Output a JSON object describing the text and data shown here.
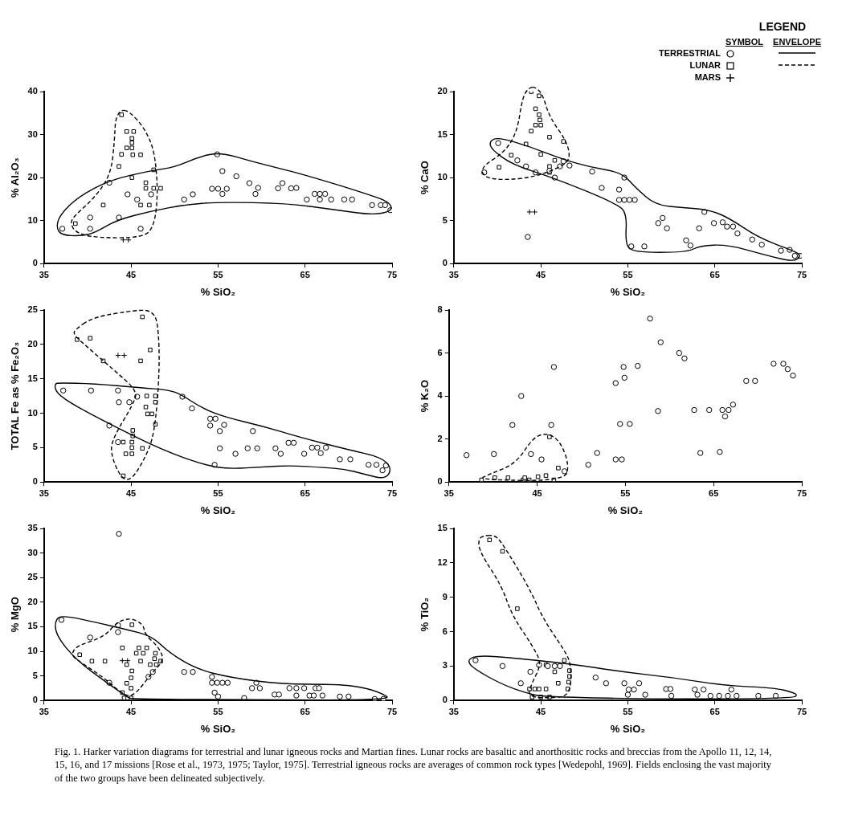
{
  "chart_data": [
    {
      "type": "scatter",
      "xlabel": "% SiO₂",
      "ylabel": "% Al₂O₃",
      "xlim": [
        35,
        75
      ],
      "xticks": [
        35,
        45,
        55,
        65,
        75
      ],
      "ylim": [
        0,
        40
      ],
      "yticks": [
        0,
        10,
        20,
        30,
        40
      ],
      "grid": false,
      "legend": false,
      "series": [
        {
          "color": "#000000",
          "marker": "circle",
          "x": [
            37.1,
            40.3,
            40.3,
            42.5,
            43.6,
            44.6,
            45.7,
            46.1,
            47.3,
            51.1,
            52.1,
            54.9,
            54.3,
            55.0,
            55.5,
            55.5,
            56.0,
            57.1,
            58.6,
            59.3,
            59.6,
            61.9,
            62.4,
            63.4,
            64.0,
            65.2,
            66.1,
            66.7,
            67.3,
            66.7,
            68.0,
            69.5,
            70.4,
            72.7,
            73.7,
            74.2,
            74.8
          ],
          "values": [
            8.1,
            10.7,
            8.1,
            18.8,
            10.7,
            16.1,
            14.9,
            8.1,
            16.1,
            14.9,
            16.1,
            25.4,
            17.4,
            17.4,
            21.5,
            16.2,
            17.4,
            20.3,
            18.7,
            16.2,
            17.6,
            17.5,
            18.7,
            17.5,
            17.6,
            14.9,
            16.2,
            16.2,
            16.2,
            14.9,
            14.9,
            14.9,
            14.9,
            13.6,
            13.6,
            13.6,
            12.4
          ]
        },
        {
          "color": "#000000",
          "marker": "square",
          "x": [
            43.9,
            44.5,
            45.3,
            45.1,
            45.1,
            44.5,
            45.1,
            43.9,
            45.2,
            46.1,
            43.6,
            47.6,
            45.1,
            46.7,
            46.7,
            47.6,
            48.4,
            41.8,
            46.1,
            47.1,
            38.6
          ],
          "values": [
            34.6,
            30.7,
            30.7,
            29.1,
            28.1,
            26.9,
            26.9,
            25.4,
            25.3,
            25.3,
            22.6,
            21.8,
            20.0,
            18.8,
            17.5,
            17.5,
            17.5,
            13.6,
            13.6,
            13.6,
            9.3
          ]
        },
        {
          "color": "#000000",
          "marker": "cross",
          "x": [
            44.1,
            44.7
          ],
          "values": [
            5.5,
            5.5
          ]
        }
      ]
    },
    {
      "type": "scatter",
      "xlabel": "% SiO₂",
      "ylabel": "% CaO",
      "xlim": [
        35,
        75
      ],
      "xticks": [
        35,
        45,
        55,
        65,
        75
      ],
      "ylim": [
        0,
        20
      ],
      "yticks": [
        0,
        5,
        10,
        15,
        20
      ],
      "grid": false,
      "legend": "top right",
      "legend_title": "LEGEND",
      "annotations": [
        "SYMBOL",
        "ENVELOPE"
      ],
      "series": [
        {
          "name": "TERRESTRIAL",
          "color": "#000000",
          "marker": "circle",
          "x": [
            40.1,
            38.5,
            42.3,
            43.3,
            44.4,
            46.6,
            46.0,
            47.2,
            47.6,
            48.3,
            50.9,
            54.6,
            52.0,
            54.0,
            54.0,
            54.6,
            55.2,
            55.8,
            59.0,
            58.5,
            59.5,
            63.2,
            63.8,
            64.9,
            65.9,
            66.4,
            67.1,
            67.6,
            69.3,
            70.4,
            61.7,
            62.2,
            55.4,
            56.9,
            72.6,
            73.6,
            74.2,
            74.8,
            43.5
          ],
          "values": [
            14.0,
            10.6,
            12.0,
            11.3,
            10.6,
            10.0,
            10.8,
            11.3,
            11.9,
            11.4,
            10.7,
            10.0,
            8.8,
            8.6,
            7.4,
            7.4,
            7.4,
            7.4,
            5.3,
            4.7,
            4.1,
            4.1,
            6.0,
            4.7,
            4.8,
            4.3,
            4.3,
            3.5,
            2.8,
            2.2,
            2.7,
            2.1,
            2.0,
            2.0,
            1.5,
            1.6,
            0.9,
            0.9,
            3.1
          ]
        },
        {
          "name": "LUNAR",
          "color": "#000000",
          "marker": "square",
          "x": [
            43.9,
            44.8,
            44.4,
            44.8,
            44.9,
            44.4,
            45.0,
            43.9,
            46.0,
            47.6,
            43.3,
            41.6,
            40.2,
            45.0,
            46.0,
            46.6,
            46.0
          ],
          "values": [
            20.0,
            19.5,
            18.0,
            17.3,
            16.7,
            16.1,
            16.1,
            15.4,
            14.7,
            14.2,
            13.9,
            12.6,
            11.2,
            12.7,
            11.3,
            12.0,
            10.6
          ]
        },
        {
          "name": "MARS",
          "color": "#000000",
          "marker": "cross",
          "x": [
            43.7,
            44.3
          ],
          "values": [
            6.0,
            6.0
          ]
        }
      ]
    },
    {
      "type": "scatter",
      "xlabel": "% SiO₂",
      "ylabel": "TOTAL Fe as % Fe₂O₃",
      "xlim": [
        35,
        75
      ],
      "xticks": [
        35,
        45,
        55,
        65,
        75
      ],
      "ylim": [
        0,
        25
      ],
      "yticks": [
        0,
        5,
        10,
        15,
        20,
        25
      ],
      "grid": false,
      "legend": false,
      "series": [
        {
          "color": "#000000",
          "marker": "circle",
          "x": [
            37.2,
            40.4,
            43.5,
            43.6,
            44.8,
            45.7,
            42.5,
            43.5,
            50.9,
            52.0,
            54.1,
            54.7,
            54.1,
            55.7,
            55.2,
            59.0,
            54.6,
            55.2,
            57.0,
            58.4,
            59.5,
            61.6,
            62.2,
            63.1,
            63.7,
            64.9,
            65.8,
            66.4,
            66.8,
            67.4,
            69.0,
            70.2,
            72.3,
            73.2,
            74.3,
            73.9
          ],
          "values": [
            13.3,
            13.3,
            13.3,
            11.6,
            11.6,
            12.4,
            8.2,
            5.8,
            12.4,
            10.7,
            9.2,
            9.2,
            8.2,
            8.3,
            7.4,
            7.4,
            2.5,
            4.9,
            4.1,
            4.9,
            4.9,
            4.9,
            4.1,
            5.7,
            5.7,
            4.1,
            5.0,
            5.0,
            4.2,
            5.0,
            3.3,
            3.3,
            2.5,
            2.5,
            2.4,
            1.7
          ]
        },
        {
          "color": "#000000",
          "marker": "square",
          "x": [
            38.8,
            40.3,
            41.8,
            46.1,
            47.2,
            46.3,
            46.8,
            47.8,
            47.8,
            46.7,
            46.9,
            47.4,
            47.8,
            45.2,
            45.2,
            44.1,
            45.1,
            45.1,
            46.3,
            44.4,
            45.1,
            44.1
          ],
          "values": [
            20.7,
            20.9,
            17.6,
            17.6,
            19.2,
            24.0,
            12.5,
            12.5,
            11.6,
            10.9,
            9.9,
            9.9,
            8.4,
            7.5,
            6.7,
            5.8,
            5.8,
            5.0,
            4.9,
            4.1,
            4.1,
            0.9
          ]
        },
        {
          "color": "#000000",
          "marker": "cross",
          "x": [
            43.5,
            44.2
          ],
          "values": [
            18.4,
            18.4
          ]
        }
      ]
    },
    {
      "type": "scatter",
      "xlabel": "% SiO₂",
      "ylabel": "% K₂O",
      "xlim": [
        35,
        75
      ],
      "xticks": [
        35,
        45,
        55,
        65,
        75
      ],
      "ylim": [
        0,
        8
      ],
      "yticks": [
        0,
        2,
        4,
        6,
        8
      ],
      "grid": false,
      "legend": false,
      "series": [
        {
          "color": "#000000",
          "marker": "circle",
          "x": [
            37.0,
            40.1,
            42.2,
            43.2,
            44.3,
            45.5,
            46.6,
            46.9,
            48.1,
            50.8,
            51.8,
            53.9,
            53.9,
            54.6,
            54.4,
            55.5,
            54.8,
            54.9,
            56.4,
            57.8,
            59.0,
            58.7,
            61.1,
            61.7,
            62.8,
            63.5,
            64.5,
            65.7,
            66.0,
            66.3,
            66.7,
            67.2,
            68.7,
            69.7,
            71.8,
            72.9,
            73.4,
            74.0
          ],
          "values": [
            1.25,
            1.3,
            2.65,
            4.0,
            1.3,
            1.05,
            2.65,
            5.35,
            0.5,
            0.8,
            1.35,
            4.6,
            1.05,
            1.05,
            2.7,
            2.7,
            5.35,
            4.85,
            5.4,
            7.6,
            6.5,
            3.3,
            6.0,
            5.75,
            3.35,
            1.35,
            3.35,
            1.4,
            3.35,
            3.05,
            3.35,
            3.6,
            4.7,
            4.7,
            5.5,
            5.5,
            5.25,
            4.95
          ]
        },
        {
          "color": "#000000",
          "marker": "square",
          "x": [
            38.7,
            40.2,
            41.7,
            43.4,
            43.6,
            44.1,
            45.1,
            46.0,
            46.4,
            46.9,
            47.4
          ],
          "values": [
            0.1,
            0.2,
            0.2,
            0.1,
            0.2,
            0.1,
            0.25,
            0.3,
            2.1,
            0.1,
            0.65
          ]
        }
      ]
    },
    {
      "type": "scatter",
      "xlabel": "% SiO₂",
      "ylabel": "% MgO",
      "xlim": [
        35,
        75
      ],
      "xticks": [
        35,
        45,
        55,
        65,
        75
      ],
      "ylim": [
        0,
        35
      ],
      "yticks": [
        0,
        5,
        10,
        15,
        20,
        25,
        30,
        35
      ],
      "grid": false,
      "legend": false,
      "series": [
        {
          "color": "#000000",
          "marker": "circle",
          "x": [
            37.0,
            40.3,
            43.6,
            43.5,
            43.5,
            42.5,
            47.0,
            47.5,
            51.1,
            52.1,
            54.3,
            54.3,
            54.9,
            55.5,
            56.1,
            59.4,
            58.9,
            59.8,
            63.2,
            64.0,
            64.9,
            66.2,
            66.6,
            54.6,
            55.0,
            58.0,
            61.5,
            62.0,
            64.0,
            65.5,
            66.0,
            67.0,
            69.0,
            70.0,
            73.0,
            74.0
          ],
          "values": [
            16.4,
            12.8,
            33.9,
            15.3,
            13.9,
            3.6,
            4.8,
            5.8,
            5.8,
            5.8,
            4.8,
            3.6,
            3.6,
            3.6,
            3.6,
            3.6,
            2.5,
            2.5,
            2.5,
            2.5,
            2.5,
            2.5,
            2.5,
            1.6,
            0.8,
            0.5,
            1.2,
            1.2,
            1.0,
            1.0,
            1.0,
            1.0,
            0.8,
            0.8,
            0.3,
            0.3
          ]
        },
        {
          "color": "#000000",
          "marker": "square",
          "x": [
            39.1,
            40.5,
            42.0,
            45.1,
            44.0,
            45.9,
            46.8,
            45.6,
            46.4,
            47.8,
            46.1,
            47.7,
            48.4,
            47.2,
            47.9,
            44.5,
            45.1,
            45.0,
            44.5,
            45.0,
            44.0,
            44.2,
            45.0
          ],
          "values": [
            9.3,
            8.0,
            8.0,
            15.4,
            10.7,
            10.7,
            10.7,
            9.6,
            9.6,
            9.6,
            8.0,
            8.5,
            8.0,
            7.3,
            7.3,
            7.3,
            6.0,
            4.6,
            3.5,
            2.5,
            1.6,
            0.5,
            0.5
          ]
        },
        {
          "color": "#000000",
          "marker": "cross",
          "x": [
            44.0,
            44.6
          ],
          "values": [
            8.1,
            8.1
          ]
        }
      ]
    },
    {
      "type": "scatter",
      "xlabel": "% SiO₂",
      "ylabel": "% TiO₂",
      "xlim": [
        35,
        75
      ],
      "xticks": [
        35,
        45,
        55,
        65,
        75
      ],
      "ylim": [
        0,
        15
      ],
      "yticks": [
        0,
        3,
        6,
        9,
        12,
        15
      ],
      "grid": false,
      "legend": false,
      "annotations": [
        "Fig. 1.   Harker variation diagrams for terrestrial and lunar igneous rocks and Martian fines. Lunar rocks are basaltic and anorthositic rocks and breccias from the Apollo 11, 12, 14, 15, 16, and 17 missions [Rose et al., 1973, 1975; Taylor, 1975]. Terrestrial igneous rocks are averages of common rock types [Wedepohl, 1969]. Fields enclosing the vast majority of the two groups have been delineated subjectively."
      ],
      "series": [
        {
          "color": "#000000",
          "marker": "circle",
          "x": [
            37.5,
            40.6,
            43.8,
            42.7,
            44.8,
            45.8,
            46.6,
            47.2,
            51.3,
            52.5,
            54.6,
            56.3,
            55.1,
            55.7,
            59.4,
            59.9,
            62.7,
            63.7,
            66.9,
            55.0,
            57.0,
            60.0,
            63.0,
            64.5,
            65.5,
            66.5,
            67.5,
            70.0,
            72.0
          ],
          "values": [
            3.5,
            3.0,
            2.5,
            1.5,
            3.1,
            3.0,
            3.0,
            3.0,
            2.0,
            1.5,
            1.5,
            1.5,
            0.95,
            0.95,
            1.0,
            1.0,
            0.95,
            0.95,
            0.95,
            0.5,
            0.5,
            0.4,
            0.5,
            0.4,
            0.4,
            0.4,
            0.4,
            0.4,
            0.4
          ]
        },
        {
          "color": "#000000",
          "marker": "square",
          "x": [
            39.1,
            40.6,
            42.3,
            47.7,
            45.6,
            46.6,
            48.3,
            48.3,
            47.0,
            48.2,
            43.7,
            44.3,
            44.8,
            45.6,
            48.1,
            44.0,
            45.0,
            46.0
          ],
          "values": [
            14.0,
            13.0,
            8.0,
            3.5,
            3.1,
            2.5,
            2.6,
            2.1,
            1.5,
            1.6,
            1.0,
            1.0,
            1.0,
            1.0,
            1.0,
            0.3,
            0.3,
            0.3
          ]
        }
      ]
    }
  ]
}
